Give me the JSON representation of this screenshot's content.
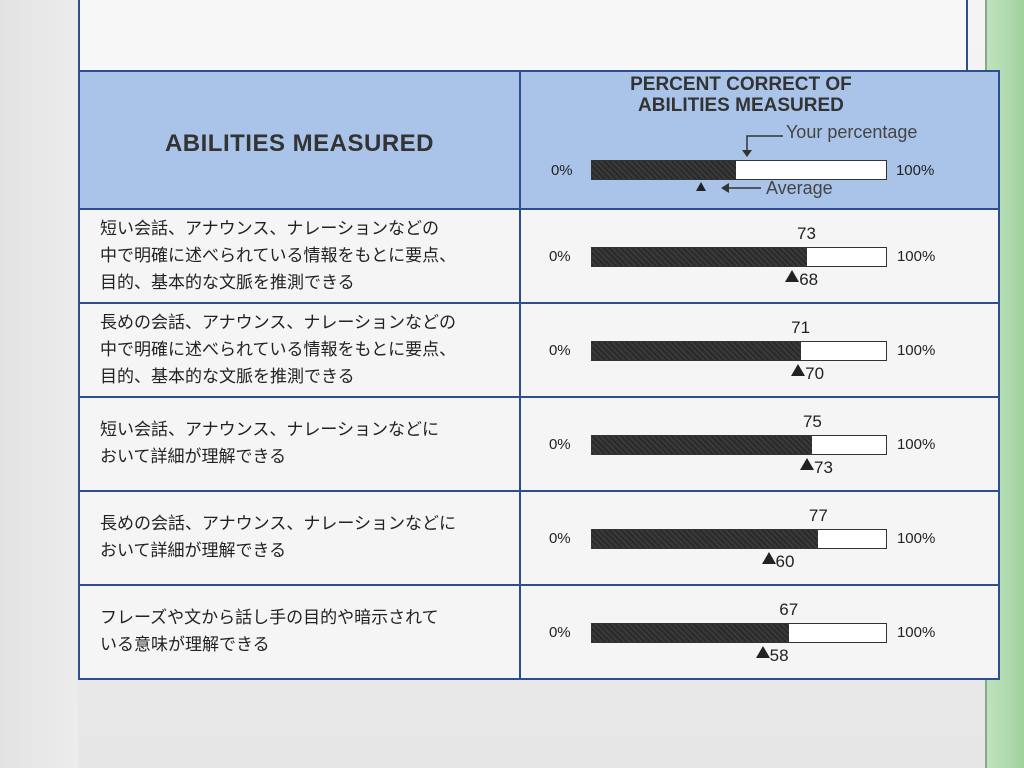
{
  "header": {
    "abilities_title": "ABILITIES MEASURED",
    "percent_title_line1": "PERCENT CORRECT OF",
    "percent_title_line2": "ABILITIES MEASURED",
    "legend_your": "Your percentage",
    "legend_average": "Average",
    "legend_sample_your_percent": 49,
    "label_zero": "0%",
    "label_hundred": "100%"
  },
  "rows": [
    {
      "lines": [
        "短い会話、アナウンス、ナレーションなどの",
        "中で明確に述べられている情報をもとに要点、",
        "目的、基本的な文脈を推測できる"
      ],
      "your": 73,
      "average": 68,
      "your_label": "73",
      "average_label": "68"
    },
    {
      "lines": [
        "長めの会話、アナウンス、ナレーションなどの",
        "中で明確に述べられている情報をもとに要点、",
        "目的、基本的な文脈を推測できる"
      ],
      "your": 71,
      "average": 70,
      "your_label": "71",
      "average_label": "70"
    },
    {
      "lines": [
        "短い会話、アナウンス、ナレーションなどに",
        "おいて詳細が理解できる"
      ],
      "your": 75,
      "average": 73,
      "your_label": "75",
      "average_label": "73"
    },
    {
      "lines": [
        "長めの会話、アナウンス、ナレーションなどに",
        "おいて詳細が理解できる"
      ],
      "your": 77,
      "average": 60,
      "your_label": "77",
      "average_label": "60"
    },
    {
      "lines": [
        "フレーズや文から話し手の目的や暗示されて",
        "いる意味が理解できる"
      ],
      "your": 67,
      "average": 58,
      "your_label": "67",
      "average_label": "58"
    }
  ],
  "colors": {
    "header_bg": "#a9c4e8",
    "border": "#2e4f8f",
    "bar_fill": "#2a2a2a"
  }
}
